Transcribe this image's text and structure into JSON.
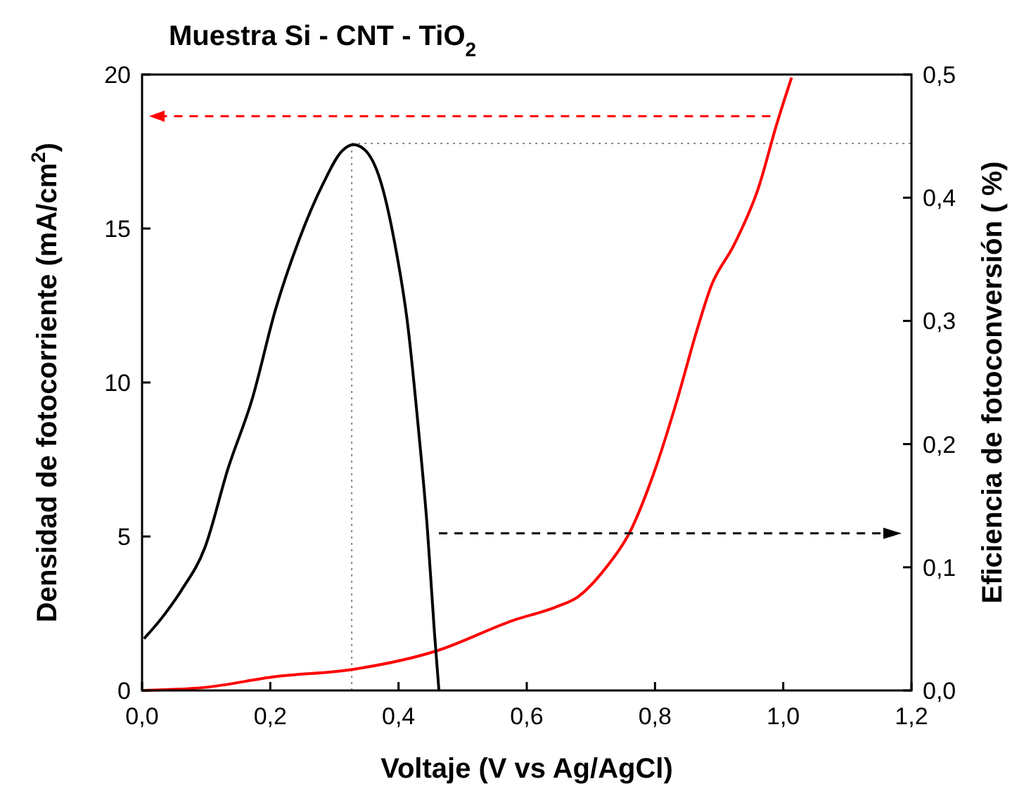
{
  "chart_data": {
    "type": "line",
    "title": "Muestra Si - CNT - TiO$_{2}$",
    "xlabel": "Voltaje (V vs Ag/AgCl)",
    "ylabel": "Densidad de fotocorriente (mA/cm$^{2}$)",
    "y2label": "Eficiencia de fotoconversión ( %)",
    "xlim": [
      0,
      1.2
    ],
    "xticks": [
      {
        "value": 0,
        "label": "0,0"
      },
      {
        "value": 0.2,
        "label": "0,2"
      },
      {
        "value": 0.4,
        "label": "0,4"
      },
      {
        "value": 0.6,
        "label": "0,6"
      },
      {
        "value": 0.8,
        "label": "0,8"
      },
      {
        "value": 1.0,
        "label": "1,0"
      },
      {
        "value": 1.2,
        "label": "1,2"
      }
    ],
    "ylim": [
      0,
      20
    ],
    "yticks": [
      0,
      5,
      10,
      15,
      20
    ],
    "y2lim": [
      0,
      0.5
    ],
    "y2ticks": [
      {
        "value": 0,
        "label": "0,0"
      },
      {
        "value": 0.1,
        "label": "0,1"
      },
      {
        "value": 0.2,
        "label": "0,2"
      },
      {
        "value": 0.3,
        "label": "0,3"
      },
      {
        "value": 0.4,
        "label": "0,4"
      },
      {
        "value": 0.5,
        "label": "0,5"
      }
    ],
    "grid": false,
    "marker": "none",
    "line_style": "solid",
    "ref_lines": [
      {
        "axis": "x",
        "value": 0.327,
        "color": "#888888",
        "line_style": "dotted"
      },
      {
        "axis": "y2",
        "value": 0.444,
        "color": "#888888",
        "line_style": "dotted"
      }
    ],
    "series": [
      {
        "color": "#ff0000",
        "x": [
          0,
          0.098,
          0.208,
          0.327,
          0.46,
          0.578,
          0.648,
          0.679,
          0.724,
          0.761,
          0.798,
          0.835,
          0.864,
          0.887,
          0.924,
          0.961,
          0.99,
          1.013
        ],
        "values": [
          0,
          0.1,
          0.45,
          0.68,
          1.29,
          2.27,
          2.73,
          3.03,
          4.0,
          5.15,
          7.05,
          9.47,
          11.6,
          13.1,
          14.5,
          16.3,
          18.4,
          19.9
        ]
      },
      {
        "color": "#000000",
        "axis": "y2",
        "x": [
          0.003,
          0.031,
          0.061,
          0.098,
          0.134,
          0.172,
          0.208,
          0.245,
          0.282,
          0.312,
          0.33,
          0.349,
          0.371,
          0.393,
          0.415,
          0.43,
          0.445,
          0.456,
          0.463
        ],
        "values": [
          0.042,
          0.059,
          0.081,
          0.116,
          0.18,
          0.237,
          0.309,
          0.366,
          0.411,
          0.438,
          0.443,
          0.438,
          0.415,
          0.366,
          0.294,
          0.218,
          0.131,
          0.047,
          0
        ]
      }
    ]
  }
}
